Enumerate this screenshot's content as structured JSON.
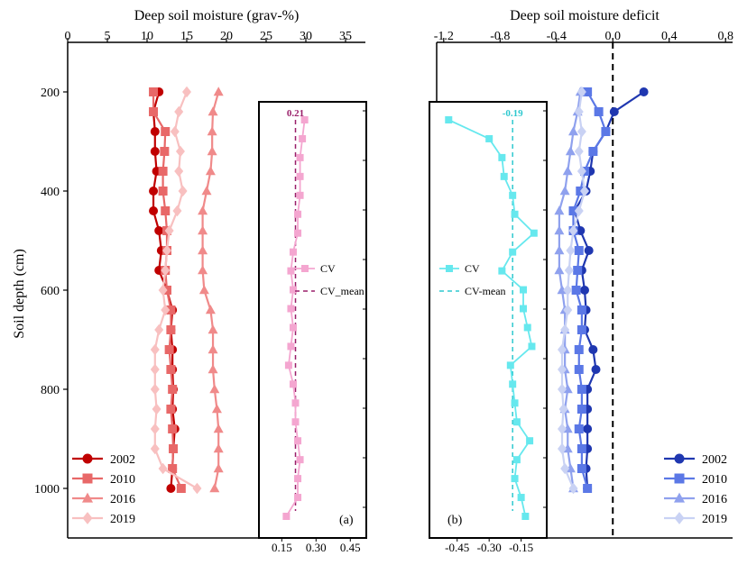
{
  "chart_data": [
    {
      "id": "a",
      "type": "line",
      "panel_label": "(a)",
      "xlabel": "Deep soil moisture (grav-%)",
      "ylabel": "Soil depth (cm)",
      "xlim": [
        0,
        37.5
      ],
      "xticks": [
        "0",
        "5",
        "10",
        "15",
        "20",
        "25",
        "30",
        "35"
      ],
      "ylim": [
        1100,
        100
      ],
      "yticks": [
        "200",
        "400",
        "600",
        "800",
        "1000"
      ],
      "legend_position": "bottom-left",
      "depths": [
        200,
        240,
        280,
        320,
        360,
        400,
        440,
        480,
        520,
        560,
        600,
        640,
        680,
        720,
        760,
        800,
        840,
        880,
        920,
        960,
        1000
      ],
      "series": [
        {
          "name": "2002",
          "marker": "circle",
          "color": "#c00000",
          "values": [
            11.5,
            10.8,
            11.0,
            11.0,
            11.2,
            10.8,
            10.8,
            11.5,
            11.8,
            11.5,
            12.5,
            13.2,
            13.0,
            13.2,
            13.2,
            13.3,
            13.2,
            13.5,
            13.3,
            13.2,
            13.0
          ]
        },
        {
          "name": "2010",
          "marker": "square",
          "color": "#e86868",
          "values": [
            10.8,
            10.8,
            12.3,
            12.2,
            12.0,
            12.0,
            12.3,
            12.5,
            12.5,
            12.3,
            12.5,
            13.0,
            13.0,
            12.8,
            13.0,
            13.2,
            13.0,
            13.2,
            13.3,
            13.2,
            14.3
          ]
        },
        {
          "name": "2016",
          "marker": "triangle",
          "color": "#f08a8a",
          "values": [
            19.0,
            18.3,
            18.2,
            18.2,
            18.0,
            17.5,
            17.0,
            17.0,
            17.0,
            17.0,
            17.2,
            18.0,
            18.3,
            18.3,
            18.3,
            18.5,
            18.8,
            19.0,
            19.0,
            19.0,
            18.5
          ]
        },
        {
          "name": "2019",
          "marker": "diamond",
          "color": "#f8c0c0",
          "values": [
            15.0,
            14.0,
            13.5,
            14.2,
            14.0,
            14.5,
            13.8,
            12.8,
            12.5,
            12.3,
            12.0,
            12.3,
            11.5,
            11.0,
            11.0,
            11.0,
            11.2,
            11.0,
            11.0,
            12.0,
            16.3
          ]
        }
      ],
      "inset": {
        "xticks": [
          "0.15",
          "0.30",
          "0.45"
        ],
        "xlim": [
          0.05,
          0.52
        ],
        "cv_label": "CV",
        "mean_label": "CV_mean",
        "mean_value": 0.21,
        "mean_text": "0.21",
        "color": "#f4a6d0",
        "mean_color": "#9a1f6a",
        "cv_values": [
          0.25,
          0.24,
          0.23,
          0.23,
          0.23,
          0.22,
          0.22,
          0.2,
          0.19,
          0.2,
          0.19,
          0.2,
          0.19,
          0.18,
          0.2,
          0.21,
          0.21,
          0.22,
          0.23,
          0.22,
          0.22,
          0.17
        ]
      }
    },
    {
      "id": "b",
      "type": "line",
      "panel_label": "(b)",
      "xlabel": "Deep soil moisture deficit",
      "ylim": [
        1100,
        100
      ],
      "xlim": [
        -1.25,
        0.85
      ],
      "xticks": [
        "-1.2",
        "-0.8",
        "-0.4",
        "0.0",
        "0.4",
        "0.8"
      ],
      "legend_position": "bottom-right",
      "depths": [
        200,
        240,
        280,
        320,
        360,
        400,
        440,
        480,
        520,
        560,
        600,
        640,
        680,
        720,
        760,
        800,
        840,
        880,
        920,
        960,
        1000
      ],
      "series": [
        {
          "name": "2002",
          "marker": "circle",
          "color": "#1f37b0",
          "values": [
            0.22,
            0.01,
            -0.05,
            -0.14,
            -0.16,
            -0.19,
            -0.27,
            -0.23,
            -0.17,
            -0.22,
            -0.2,
            -0.19,
            -0.2,
            -0.14,
            -0.12,
            -0.18,
            -0.18,
            -0.18,
            -0.18,
            -0.19,
            -0.18
          ]
        },
        {
          "name": "2010",
          "marker": "square",
          "color": "#5b78e6",
          "values": [
            -0.18,
            -0.1,
            -0.05,
            -0.14,
            -0.2,
            -0.23,
            -0.28,
            -0.28,
            -0.24,
            -0.25,
            -0.26,
            -0.22,
            -0.22,
            -0.24,
            -0.24,
            -0.22,
            -0.22,
            -0.24,
            -0.22,
            -0.22,
            -0.18
          ]
        },
        {
          "name": "2016",
          "marker": "triangle",
          "color": "#8fa1ee",
          "values": [
            -0.23,
            -0.25,
            -0.28,
            -0.3,
            -0.32,
            -0.34,
            -0.38,
            -0.38,
            -0.38,
            -0.38,
            -0.36,
            -0.34,
            -0.34,
            -0.34,
            -0.34,
            -0.32,
            -0.34,
            -0.32,
            -0.32,
            -0.3,
            -0.28
          ]
        },
        {
          "name": "2019",
          "marker": "diamond",
          "color": "#c9d2f4",
          "values": [
            -0.22,
            -0.24,
            -0.22,
            -0.24,
            -0.22,
            -0.2,
            -0.24,
            -0.28,
            -0.3,
            -0.31,
            -0.32,
            -0.32,
            -0.34,
            -0.36,
            -0.36,
            -0.36,
            -0.35,
            -0.36,
            -0.36,
            -0.34,
            -0.28
          ]
        }
      ],
      "inset": {
        "xticks": [
          "-0.45",
          "-0.30",
          "-0.15"
        ],
        "xlim": [
          -0.58,
          -0.03
        ],
        "cv_label": "CV",
        "mean_label": "CV-mean",
        "mean_value": -0.19,
        "mean_text": "-0.19",
        "color": "#66e8ee",
        "mean_color": "#2ec8cf",
        "cv_values": [
          -0.49,
          -0.3,
          -0.24,
          -0.23,
          -0.19,
          -0.18,
          -0.09,
          -0.19,
          -0.24,
          -0.14,
          -0.14,
          -0.12,
          -0.1,
          -0.2,
          -0.19,
          -0.18,
          -0.17,
          -0.11,
          -0.17,
          -0.18,
          -0.15,
          -0.13
        ]
      }
    }
  ]
}
